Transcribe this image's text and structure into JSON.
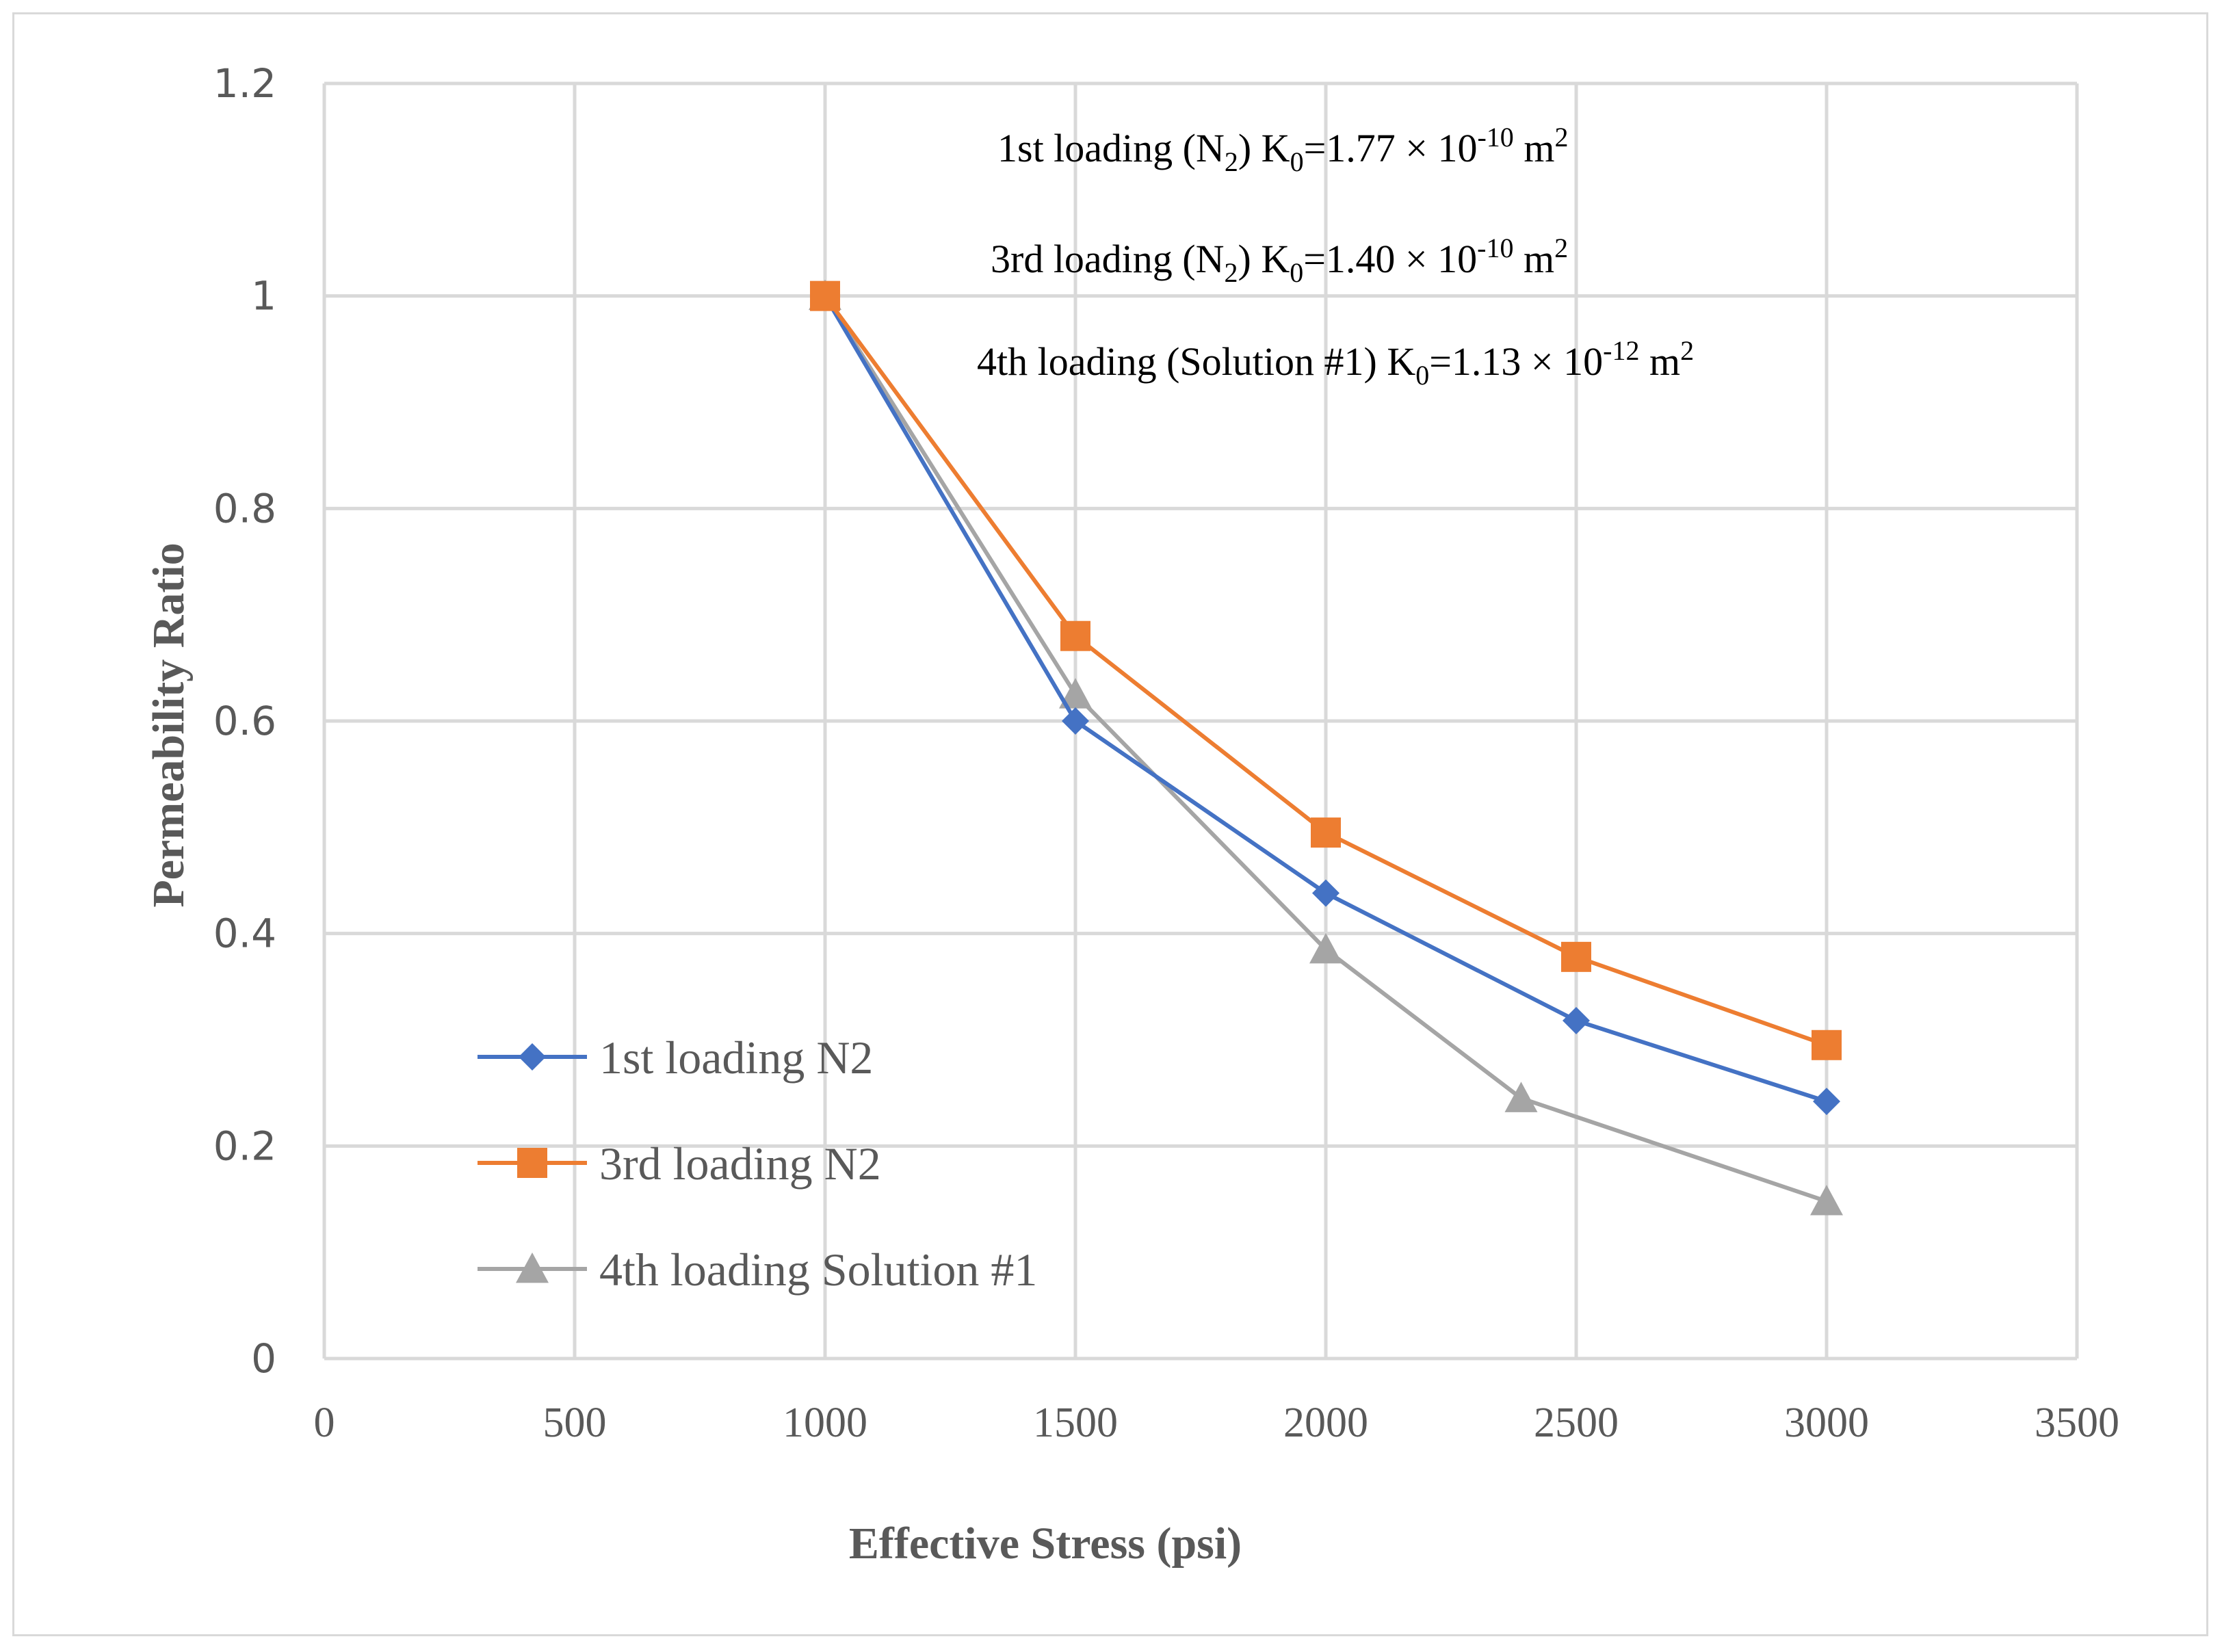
{
  "chart_data": {
    "type": "line",
    "title": "",
    "xlabel": "Effective Stress (psi)",
    "ylabel": "Permeability Ratio",
    "xlim": [
      0,
      3500
    ],
    "ylim": [
      0,
      1.2
    ],
    "x_ticks": [
      "0",
      "500",
      "1000",
      "1500",
      "2000",
      "2500",
      "3000",
      "3500"
    ],
    "y_ticks": [
      "0",
      "0.2",
      "0.4",
      "0.6",
      "0.8",
      "1",
      "1.2"
    ],
    "grid": true,
    "legend_position": "bottom-left",
    "series": [
      {
        "name": "1st loading N2",
        "marker": "diamond",
        "color": "#4472c4",
        "x": [
          1000,
          1500,
          2000,
          2500,
          3000
        ],
        "y": [
          1.0,
          0.6,
          0.438,
          0.318,
          0.242
        ]
      },
      {
        "name": "3rd loading N2",
        "marker": "square",
        "color": "#ed7d31",
        "x": [
          1000,
          1500,
          2000,
          2500,
          3000
        ],
        "y": [
          1.0,
          0.68,
          0.495,
          0.378,
          0.295
        ]
      },
      {
        "name": "4th loading Solution #1",
        "marker": "triangle",
        "color": "#a5a5a5",
        "x": [
          1000,
          1500,
          2000,
          2390,
          3000
        ],
        "y": [
          1.0,
          0.625,
          0.385,
          0.245,
          0.148
        ]
      }
    ],
    "annotations": [
      {
        "prefix": "1st loading (N",
        "sub1": "2",
        "mid": ")  K",
        "sub2": "0",
        "value": "=1.77 × 10",
        "sup1": "-10",
        "unit": " m",
        "sup2": "2"
      },
      {
        "prefix": "3rd loading (N",
        "sub1": "2",
        "mid": ")  K",
        "sub2": "0",
        "value": "=1.40 × 10",
        "sup1": "-10",
        "unit": " m",
        "sup2": "2"
      },
      {
        "prefix": "4th loading (Solution #1) K",
        "sub1": "",
        "mid": "",
        "sub2": "0",
        "value": "=1.13 × 10",
        "sup1": "-12",
        "unit": " m",
        "sup2": "2"
      }
    ]
  }
}
